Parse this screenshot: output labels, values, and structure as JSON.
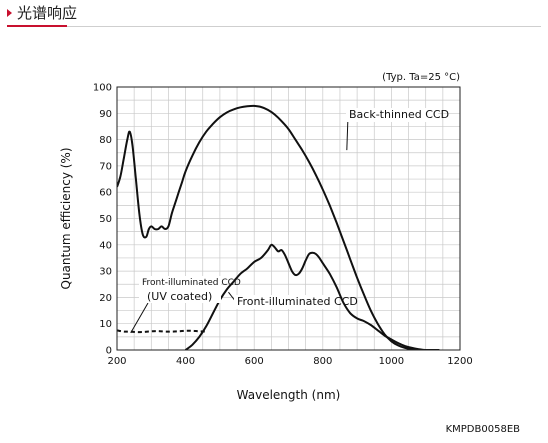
{
  "header": {
    "title": "光谱响应"
  },
  "chart_data": {
    "type": "line",
    "title": "",
    "condition_note": "(Typ. Ta=25 °C)",
    "xlabel": "Wavelength (nm)",
    "ylabel": "Quantum efficiency (%)",
    "xlim": [
      200,
      1200
    ],
    "ylim": [
      0,
      100
    ],
    "xticks": [
      200,
      400,
      600,
      800,
      1000,
      1200
    ],
    "yticks": [
      0,
      10,
      20,
      30,
      40,
      50,
      60,
      70,
      80,
      90,
      100
    ],
    "grid": true,
    "series": [
      {
        "name": "Back-thinned CCD",
        "style": "solid",
        "x": [
          200,
          210,
          220,
          230,
          237,
          245,
          255,
          265,
          275,
          285,
          293,
          300,
          310,
          320,
          330,
          340,
          350,
          360,
          370,
          380,
          390,
          400,
          420,
          440,
          460,
          480,
          500,
          520,
          540,
          560,
          580,
          600,
          620,
          640,
          660,
          680,
          700,
          720,
          740,
          760,
          780,
          800,
          820,
          840,
          860,
          880,
          900,
          920,
          940,
          960,
          980,
          1000,
          1020,
          1040,
          1060,
          1080,
          1100,
          1120,
          1140
        ],
        "y": [
          62,
          66,
          73,
          80,
          83,
          78,
          65,
          52,
          44,
          43,
          46,
          47,
          46,
          46,
          47,
          46,
          47,
          52,
          56,
          60,
          64,
          68,
          74,
          79,
          83,
          86,
          88.5,
          90.3,
          91.5,
          92.3,
          92.7,
          92.8,
          92.4,
          91.3,
          89.5,
          87,
          84,
          80,
          76,
          71.5,
          66.5,
          61,
          55,
          48.5,
          41.5,
          34.5,
          27.5,
          21,
          15,
          10,
          6,
          3.3,
          1.7,
          0.8,
          0.3,
          0.1,
          0,
          0,
          0
        ]
      },
      {
        "name": "Front-illuminated CCD",
        "style": "solid",
        "x": [
          400,
          420,
          440,
          460,
          480,
          500,
          520,
          540,
          560,
          580,
          600,
          620,
          640,
          650,
          660,
          670,
          680,
          690,
          700,
          710,
          720,
          730,
          740,
          750,
          760,
          770,
          780,
          790,
          800,
          820,
          840,
          860,
          880,
          900,
          920,
          940,
          960,
          980,
          1000,
          1020,
          1040,
          1060,
          1080,
          1100
        ],
        "y": [
          0,
          2,
          5,
          9,
          14,
          19,
          23,
          26,
          29,
          31,
          33.5,
          35,
          38,
          40,
          39,
          37.5,
          38,
          36,
          33,
          30,
          28.5,
          29,
          31,
          34,
          36.5,
          37,
          36.5,
          35,
          33,
          29,
          24,
          18,
          14,
          12,
          11,
          9.5,
          7.5,
          5.5,
          4,
          2.6,
          1.5,
          0.8,
          0.3,
          0
        ]
      },
      {
        "name": "Front-illuminated CCD (UV coated)",
        "style": "dashed",
        "x": [
          200,
          220,
          240,
          260,
          280,
          300,
          320,
          340,
          360,
          380,
          400,
          420,
          440,
          460
        ],
        "y": [
          7.5,
          7,
          7,
          6.8,
          6.9,
          7.1,
          7.2,
          7,
          7,
          7.1,
          7.3,
          7.3,
          7.1,
          7
        ]
      }
    ],
    "annotations": [
      {
        "text": "Back-thinned CCD",
        "target_series": "Back-thinned CCD"
      },
      {
        "text": "Front-illuminated CCD",
        "target_series": "Front-illuminated CCD"
      },
      {
        "text": "Front-illuminated CCD",
        "text2": "(UV coated)",
        "target_series": "Front-illuminated CCD (UV coated)"
      }
    ],
    "footer_code": "KMPDB0058EB"
  }
}
